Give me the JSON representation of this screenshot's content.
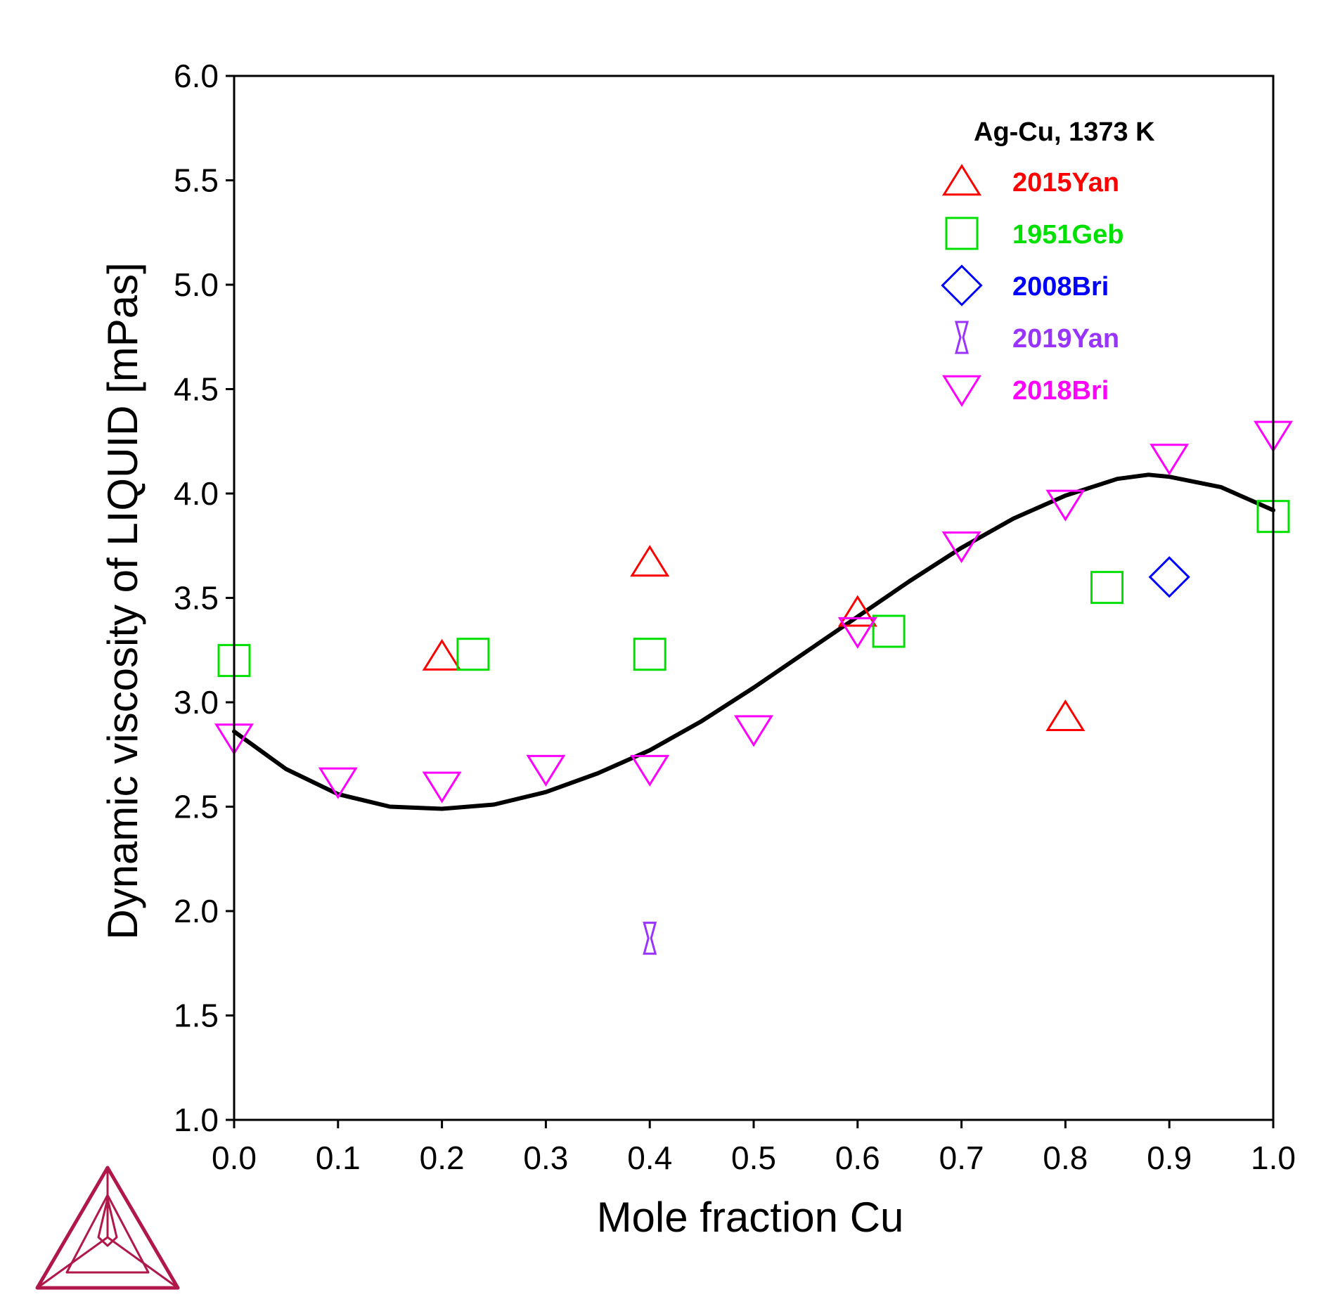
{
  "chart_data": {
    "type": "scatter",
    "title": "Ag-Cu, 1373 K",
    "xlabel": "Mole fraction Cu",
    "ylabel": "Dynamic viscosity of LIQUID [mPas]",
    "xlim": [
      0.0,
      1.0
    ],
    "ylim": [
      1.0,
      6.0
    ],
    "xticks": [
      "0.0",
      "0.1",
      "0.2",
      "0.3",
      "0.4",
      "0.5",
      "0.6",
      "0.7",
      "0.8",
      "0.9",
      "1.0"
    ],
    "yticks": [
      "1.0",
      "1.5",
      "2.0",
      "2.5",
      "3.0",
      "3.5",
      "4.0",
      "4.5",
      "5.0",
      "5.5",
      "6.0"
    ],
    "grid": false,
    "legend_position": "top-right",
    "curve": {
      "name": "",
      "color": "#000000",
      "x": [
        0.0,
        0.05,
        0.1,
        0.15,
        0.2,
        0.25,
        0.3,
        0.35,
        0.4,
        0.45,
        0.5,
        0.55,
        0.6,
        0.65,
        0.7,
        0.75,
        0.8,
        0.85,
        0.88,
        0.9,
        0.95,
        1.0
      ],
      "y": [
        2.86,
        2.68,
        2.56,
        2.5,
        2.49,
        2.51,
        2.57,
        2.66,
        2.77,
        2.91,
        3.07,
        3.24,
        3.41,
        3.58,
        3.74,
        3.88,
        3.99,
        4.07,
        4.09,
        4.08,
        4.03,
        3.92
      ]
    },
    "series": [
      {
        "name": "2015Yan",
        "marker": "triangle-up",
        "color": "#ff0000",
        "x": [
          0.2,
          0.4,
          0.6,
          0.8
        ],
        "y": [
          3.22,
          3.67,
          3.43,
          2.93
        ]
      },
      {
        "name": "1951Geb",
        "marker": "square",
        "color": "#00e000",
        "x": [
          0.0,
          0.23,
          0.4,
          0.63,
          0.84,
          1.0
        ],
        "y": [
          3.2,
          3.23,
          3.23,
          3.34,
          3.55,
          3.89
        ]
      },
      {
        "name": "2008Bri",
        "marker": "diamond",
        "color": "#0000ff",
        "x": [
          0.9
        ],
        "y": [
          3.6
        ]
      },
      {
        "name": "2019Yan",
        "marker": "hourglass",
        "color": "#9933ff",
        "x": [
          0.4
        ],
        "y": [
          1.87
        ]
      },
      {
        "name": "2018Bri",
        "marker": "triangle-down",
        "color": "#ff00ff",
        "x": [
          0.0,
          0.1,
          0.2,
          0.3,
          0.4,
          0.5,
          0.6,
          0.7,
          0.8,
          0.9,
          1.0
        ],
        "y": [
          2.83,
          2.62,
          2.6,
          2.68,
          2.68,
          2.87,
          3.34,
          3.75,
          3.95,
          4.17,
          4.28
        ]
      }
    ]
  },
  "logo": {
    "name": "thermo-calc-logo",
    "color": "#b0184a"
  }
}
